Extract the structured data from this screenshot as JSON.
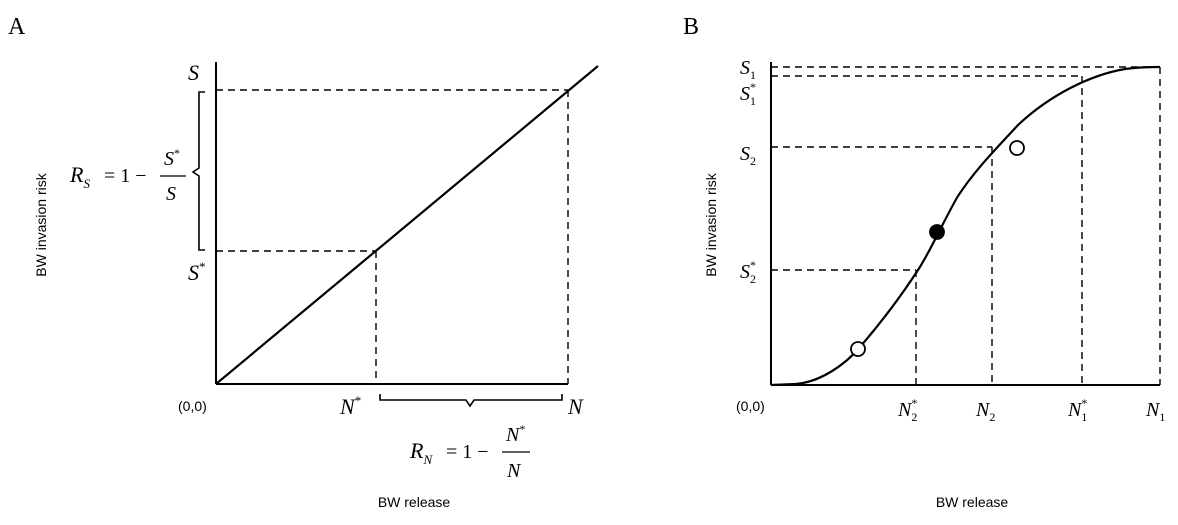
{
  "panel_a": {
    "panel_label": "A",
    "ylabel": "BW invasion risk",
    "xlabel": "BW release",
    "origin_label": "(0,0)",
    "y_S": "S",
    "y_Sstar_base": "S",
    "x_Nstar_base": "N",
    "x_N": "N",
    "star": "*",
    "rs_prefix": "R",
    "rs_sub": "S",
    "rs_eq": "= 1 −",
    "rs_num": "S",
    "rs_den": "S",
    "rn_prefix": "R",
    "rn_sub": "N",
    "rn_eq": "= 1 −",
    "rn_num": "N",
    "rn_den": "N"
  },
  "panel_b": {
    "panel_label": "B",
    "ylabel": "BW invasion risk",
    "xlabel": "BW release",
    "origin_label": "(0,0)",
    "star": "*",
    "y_S1": {
      "base": "S",
      "sub": "1"
    },
    "y_S1star": {
      "base": "S",
      "sub": "1"
    },
    "y_S2": {
      "base": "S",
      "sub": "2"
    },
    "y_S2star": {
      "base": "S",
      "sub": "2"
    },
    "x_N2star": {
      "base": "N",
      "sub": "2"
    },
    "x_N2": {
      "base": "N",
      "sub": "2"
    },
    "x_N1star": {
      "base": "N",
      "sub": "1"
    },
    "x_N1": {
      "base": "N",
      "sub": "1"
    }
  }
}
